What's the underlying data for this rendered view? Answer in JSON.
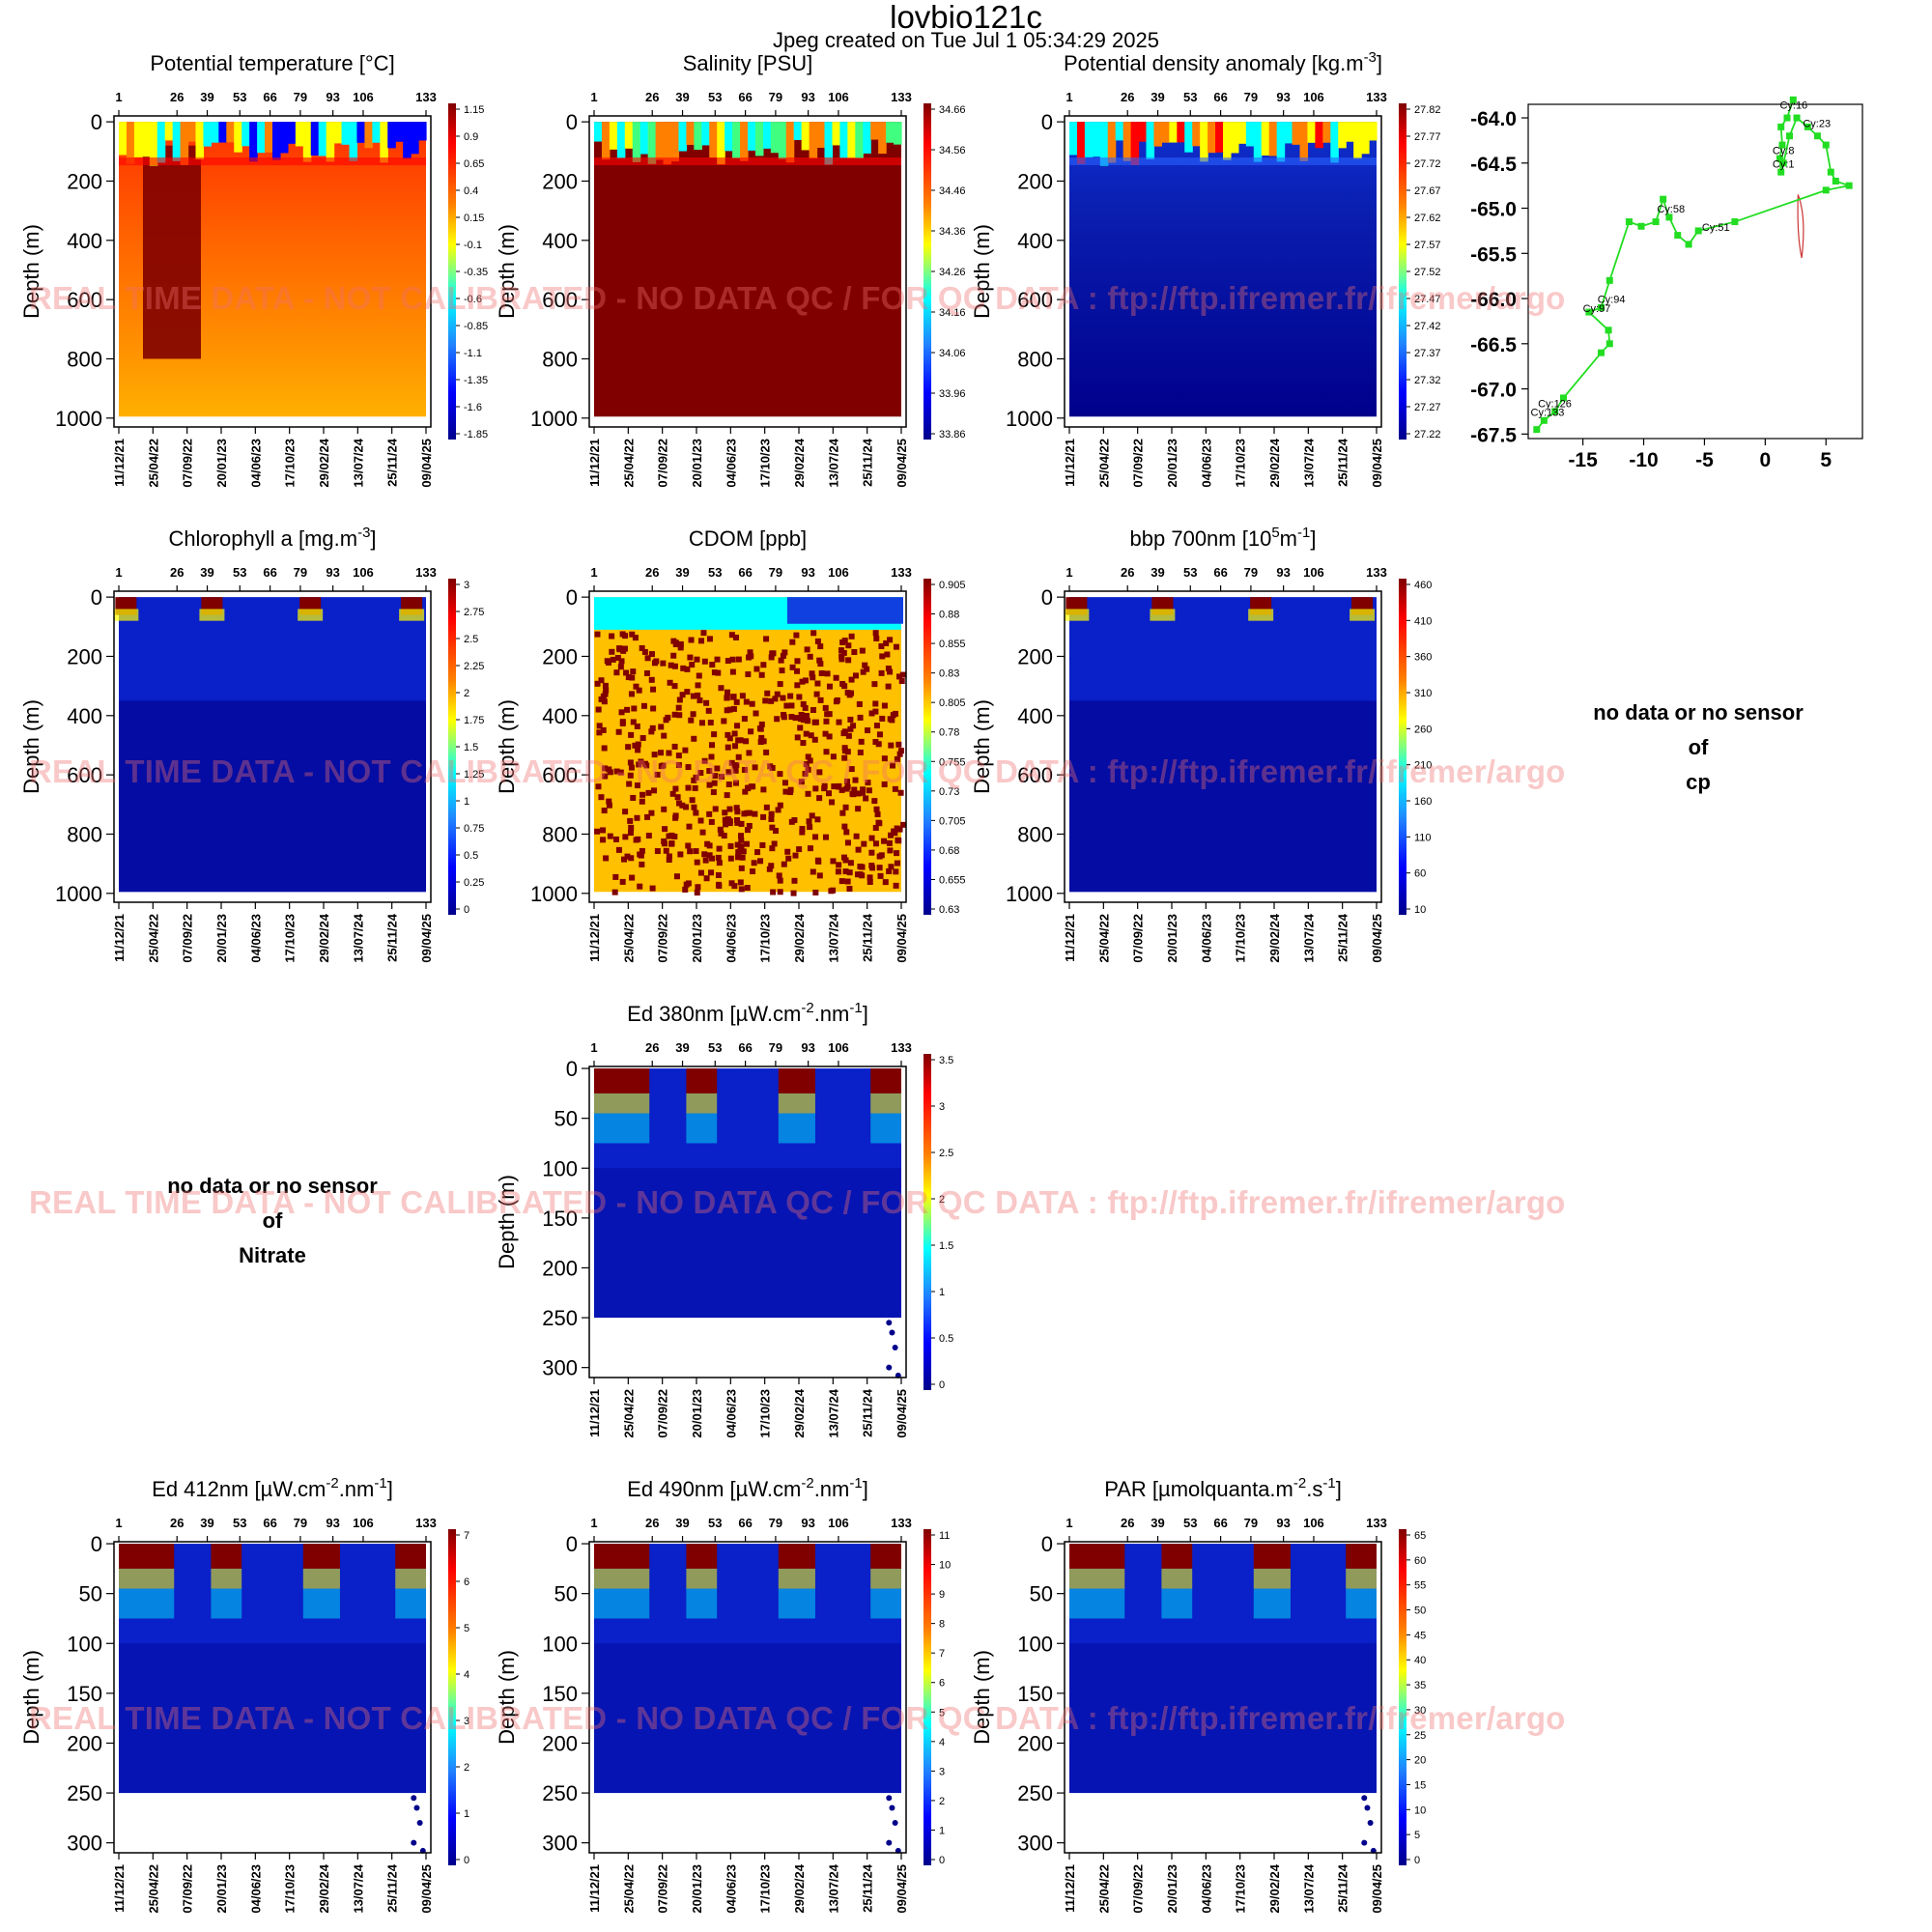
{
  "header": {
    "title": "lovbio121c",
    "subtitle": "Jpeg created on  Tue Jul  1 05:34:29 2025"
  },
  "colors": {
    "darkred": "#800000",
    "red": "#ff0000",
    "orange": "#ff8000",
    "yellow": "#ffff00",
    "cyan": "#00ffff",
    "blue": "#0000ff",
    "navy": "#00008b",
    "track_green": "#22dd22",
    "contour": "#cc3333"
  },
  "watermark": "REAL TIME DATA - NOT CALIBRATED - NO DATA QC /  FOR QC DATA : ftp://ftp.ifremer.fr/ifremer/argo",
  "no_data": {
    "line1": "no data or no sensor",
    "line2": "of",
    "nitrate": "Nitrate",
    "cp": "cp"
  },
  "chart_data": [
    {
      "id": "temp",
      "type": "heatmap",
      "title": "Potential temperature [°C]",
      "ylabel": "Depth (m)",
      "ylim": [
        1030,
        -20
      ],
      "y_ticks": [
        "0",
        "200",
        "400",
        "600",
        "800",
        "1000"
      ],
      "cycle_ticks": [
        "1",
        "26",
        "39",
        "53",
        "66",
        "79",
        "93",
        "106",
        "133"
      ],
      "date_ticks": [
        "11/12/21",
        "25/04/22",
        "07/09/22",
        "20/01/23",
        "04/06/23",
        "17/10/23",
        "29/02/24",
        "13/07/24",
        "25/11/24",
        "09/04/25"
      ],
      "colorbar_labels": [
        "1.15",
        "0.9",
        "0.65",
        "0.4",
        "0.15",
        "-0.1",
        "-0.35",
        "-0.6",
        "-0.85",
        "-1.1",
        "-1.35",
        "-1.6",
        "-1.85"
      ]
    },
    {
      "id": "sal",
      "type": "heatmap",
      "title": "Salinity [PSU]",
      "ylabel": "Depth (m)",
      "ylim": [
        1030,
        -20
      ],
      "y_ticks": [
        "0",
        "200",
        "400",
        "600",
        "800",
        "1000"
      ],
      "cycle_ticks": [
        "1",
        "26",
        "39",
        "53",
        "66",
        "79",
        "93",
        "106",
        "133"
      ],
      "date_ticks": [
        "11/12/21",
        "25/04/22",
        "07/09/22",
        "20/01/23",
        "04/06/23",
        "17/10/23",
        "29/02/24",
        "13/07/24",
        "25/11/24",
        "09/04/25"
      ],
      "colorbar_labels": [
        "34.66",
        "34.56",
        "34.46",
        "34.36",
        "34.26",
        "34.16",
        "34.06",
        "33.96",
        "33.86"
      ]
    },
    {
      "id": "dens",
      "type": "heatmap",
      "title": "Potential density anomaly [kg.m",
      "title_sup": "-3",
      "title_after": "]",
      "ylabel": "Depth (m)",
      "ylim": [
        1030,
        -20
      ],
      "y_ticks": [
        "0",
        "200",
        "400",
        "600",
        "800",
        "1000"
      ],
      "cycle_ticks": [
        "1",
        "26",
        "39",
        "53",
        "66",
        "79",
        "93",
        "106",
        "133"
      ],
      "date_ticks": [
        "11/12/21",
        "25/04/22",
        "07/09/22",
        "20/01/23",
        "04/06/23",
        "17/10/23",
        "29/02/24",
        "13/07/24",
        "25/11/24",
        "09/04/25"
      ],
      "colorbar_labels": [
        "27.82",
        "27.77",
        "27.72",
        "27.67",
        "27.62",
        "27.57",
        "27.52",
        "27.47",
        "27.42",
        "27.37",
        "27.32",
        "27.27",
        "27.22"
      ]
    },
    {
      "id": "chla",
      "type": "heatmap",
      "title": "Chlorophyll a [mg.m",
      "title_sup": "-3",
      "title_after": "]",
      "ylabel": "Depth (m)",
      "ylim": [
        1030,
        -20
      ],
      "y_ticks": [
        "0",
        "200",
        "400",
        "600",
        "800",
        "1000"
      ],
      "cycle_ticks": [
        "1",
        "26",
        "39",
        "53",
        "66",
        "79",
        "93",
        "106",
        "133"
      ],
      "date_ticks": [
        "11/12/21",
        "25/04/22",
        "07/09/22",
        "20/01/23",
        "04/06/23",
        "17/10/23",
        "29/02/24",
        "13/07/24",
        "25/11/24",
        "09/04/25"
      ],
      "colorbar_labels": [
        "3",
        "2.75",
        "2.5",
        "2.25",
        "2",
        "1.75",
        "1.5",
        "1.25",
        "1",
        "0.75",
        "0.5",
        "0.25",
        "0"
      ]
    },
    {
      "id": "cdom",
      "type": "heatmap",
      "title": "CDOM  [ppb]",
      "ylabel": "Depth (m)",
      "ylim": [
        1030,
        -20
      ],
      "y_ticks": [
        "0",
        "200",
        "400",
        "600",
        "800",
        "1000"
      ],
      "cycle_ticks": [
        "1",
        "26",
        "39",
        "53",
        "66",
        "79",
        "93",
        "106",
        "133"
      ],
      "date_ticks": [
        "11/12/21",
        "25/04/22",
        "07/09/22",
        "20/01/23",
        "04/06/23",
        "17/10/23",
        "29/02/24",
        "13/07/24",
        "25/11/24",
        "09/04/25"
      ],
      "colorbar_labels": [
        "0.905",
        "0.88",
        "0.855",
        "0.83",
        "0.805",
        "0.78",
        "0.755",
        "0.73",
        "0.705",
        "0.68",
        "0.655",
        "0.63"
      ]
    },
    {
      "id": "bbp",
      "type": "heatmap",
      "title": "bbp 700nm [10",
      "title_sup": "5",
      "title_after": "m",
      "title_sup2": "-1",
      "title_after2": "]",
      "ylabel": "Depth (m)",
      "ylim": [
        1030,
        -20
      ],
      "y_ticks": [
        "0",
        "200",
        "400",
        "600",
        "800",
        "1000"
      ],
      "cycle_ticks": [
        "1",
        "26",
        "39",
        "53",
        "66",
        "79",
        "93",
        "106",
        "133"
      ],
      "date_ticks": [
        "11/12/21",
        "25/04/22",
        "07/09/22",
        "20/01/23",
        "04/06/23",
        "17/10/23",
        "29/02/24",
        "13/07/24",
        "25/11/24",
        "09/04/25"
      ],
      "colorbar_labels": [
        "460",
        "410",
        "360",
        "310",
        "260",
        "210",
        "160",
        "110",
        "60",
        "10"
      ]
    },
    {
      "id": "ed380",
      "type": "heatmap",
      "title": "Ed 380nm [µW.cm",
      "title_sup": "-2",
      "title_after": ".nm",
      "title_sup2": "-1",
      "title_after2": "]",
      "ylabel": "Depth (m)",
      "ylim": [
        310,
        -2
      ],
      "y_ticks": [
        "0",
        "50",
        "100",
        "150",
        "200",
        "250",
        "300"
      ],
      "cycle_ticks": [
        "1",
        "26",
        "39",
        "53",
        "66",
        "79",
        "93",
        "106",
        "133"
      ],
      "date_ticks": [
        "11/12/21",
        "25/04/22",
        "07/09/22",
        "20/01/23",
        "04/06/23",
        "17/10/23",
        "29/02/24",
        "13/07/24",
        "25/11/24",
        "09/04/25"
      ],
      "colorbar_labels": [
        "3.5",
        "3",
        "2.5",
        "2",
        "1.5",
        "1",
        "0.5",
        "0"
      ]
    },
    {
      "id": "ed412",
      "type": "heatmap",
      "title": "Ed 412nm [µW.cm",
      "title_sup": "-2",
      "title_after": ".nm",
      "title_sup2": "-1",
      "title_after2": "]",
      "ylabel": "Depth (m)",
      "ylim": [
        310,
        -2
      ],
      "y_ticks": [
        "0",
        "50",
        "100",
        "150",
        "200",
        "250",
        "300"
      ],
      "cycle_ticks": [
        "1",
        "26",
        "39",
        "53",
        "66",
        "79",
        "93",
        "106",
        "133"
      ],
      "date_ticks": [
        "11/12/21",
        "25/04/22",
        "07/09/22",
        "20/01/23",
        "04/06/23",
        "17/10/23",
        "29/02/24",
        "13/07/24",
        "25/11/24",
        "09/04/25"
      ],
      "colorbar_labels": [
        "7",
        "6",
        "5",
        "4",
        "3",
        "2",
        "1",
        "0"
      ]
    },
    {
      "id": "ed490",
      "type": "heatmap",
      "title": "Ed 490nm [µW.cm",
      "title_sup": "-2",
      "title_after": ".nm",
      "title_sup2": "-1",
      "title_after2": "]",
      "ylabel": "Depth (m)",
      "ylim": [
        310,
        -2
      ],
      "y_ticks": [
        "0",
        "50",
        "100",
        "150",
        "200",
        "250",
        "300"
      ],
      "cycle_ticks": [
        "1",
        "26",
        "39",
        "53",
        "66",
        "79",
        "93",
        "106",
        "133"
      ],
      "date_ticks": [
        "11/12/21",
        "25/04/22",
        "07/09/22",
        "20/01/23",
        "04/06/23",
        "17/10/23",
        "29/02/24",
        "13/07/24",
        "25/11/24",
        "09/04/25"
      ],
      "colorbar_labels": [
        "11",
        "10",
        "9",
        "8",
        "7",
        "6",
        "5",
        "4",
        "3",
        "2",
        "1",
        "0"
      ]
    },
    {
      "id": "par",
      "type": "heatmap",
      "title": "PAR [µmolquanta.m",
      "title_sup": "-2",
      "title_after": ".s",
      "title_sup2": "-1",
      "title_after2": "]",
      "ylabel": "Depth (m)",
      "ylim": [
        310,
        -2
      ],
      "y_ticks": [
        "0",
        "50",
        "100",
        "150",
        "200",
        "250",
        "300"
      ],
      "cycle_ticks": [
        "1",
        "26",
        "39",
        "53",
        "66",
        "79",
        "93",
        "106",
        "133"
      ],
      "date_ticks": [
        "11/12/21",
        "25/04/22",
        "07/09/22",
        "20/01/23",
        "04/06/23",
        "17/10/23",
        "29/02/24",
        "13/07/24",
        "25/11/24",
        "09/04/25"
      ],
      "colorbar_labels": [
        "65",
        "60",
        "55",
        "50",
        "45",
        "40",
        "35",
        "30",
        "25",
        "20",
        "15",
        "10",
        "5",
        "0"
      ]
    },
    {
      "id": "track",
      "type": "scatter",
      "xlim": [
        -19.5,
        8
      ],
      "ylim": [
        -67.55,
        -63.85
      ],
      "x_ticks": [
        -15,
        -10,
        -5,
        0,
        5
      ],
      "x_tick_labels": [
        "-15",
        "-10",
        "-5",
        "0",
        "5"
      ],
      "y_ticks": [
        -64.0,
        -64.5,
        -65.0,
        -65.5,
        -66.0,
        -66.5,
        -67.0,
        -67.5
      ],
      "y_tick_labels": [
        "-64.0",
        "-64.5",
        "-65.0",
        "-65.5",
        "-66.0",
        "-66.5",
        "-67.0",
        "-67.5"
      ],
      "track": [
        [
          2.3,
          -63.8
        ],
        [
          1.8,
          -64.0
        ],
        [
          1.3,
          -64.1
        ],
        [
          1.4,
          -64.3
        ],
        [
          1.2,
          -64.45
        ],
        [
          1.3,
          -64.6
        ],
        [
          1.5,
          -64.5
        ],
        [
          2.0,
          -64.2
        ],
        [
          2.6,
          -64.0
        ],
        [
          3.5,
          -64.1
        ],
        [
          4.3,
          -64.2
        ],
        [
          5.0,
          -64.3
        ],
        [
          5.4,
          -64.6
        ],
        [
          5.8,
          -64.7
        ],
        [
          6.9,
          -64.75
        ],
        [
          5.0,
          -64.8
        ],
        [
          -2.5,
          -65.15
        ],
        [
          -5.5,
          -65.25
        ],
        [
          -6.3,
          -65.4
        ],
        [
          -7.2,
          -65.3
        ],
        [
          -7.9,
          -65.1
        ],
        [
          -8.4,
          -64.9
        ],
        [
          -9.0,
          -65.15
        ],
        [
          -10.2,
          -65.2
        ],
        [
          -11.2,
          -65.15
        ],
        [
          -12.8,
          -65.8
        ],
        [
          -13.5,
          -66.1
        ],
        [
          -14.5,
          -66.15
        ],
        [
          -12.9,
          -66.35
        ],
        [
          -12.8,
          -66.5
        ],
        [
          -13.5,
          -66.6
        ],
        [
          -16.6,
          -67.1
        ],
        [
          -17.3,
          -67.25
        ],
        [
          -18.2,
          -67.35
        ],
        [
          -18.8,
          -67.45
        ]
      ],
      "labels": [
        {
          "text": "Cy:16",
          "x": 1.2,
          "y": -63.9
        },
        {
          "text": "Cy:23",
          "x": 3.1,
          "y": -64.1
        },
        {
          "text": "Cy:8",
          "x": 0.6,
          "y": -64.4
        },
        {
          "text": "Cy:1",
          "x": 0.6,
          "y": -64.55
        },
        {
          "text": "Cy:58",
          "x": -8.9,
          "y": -65.05
        },
        {
          "text": "Cy:51",
          "x": -5.2,
          "y": -65.25
        },
        {
          "text": "Cy:94",
          "x": -13.8,
          "y": -66.05
        },
        {
          "text": "Cy:97",
          "x": -15.0,
          "y": -66.15
        },
        {
          "text": "Cy:126",
          "x": -18.7,
          "y": -67.2
        },
        {
          "text": "Cy:133",
          "x": -19.3,
          "y": -67.3
        }
      ]
    }
  ]
}
